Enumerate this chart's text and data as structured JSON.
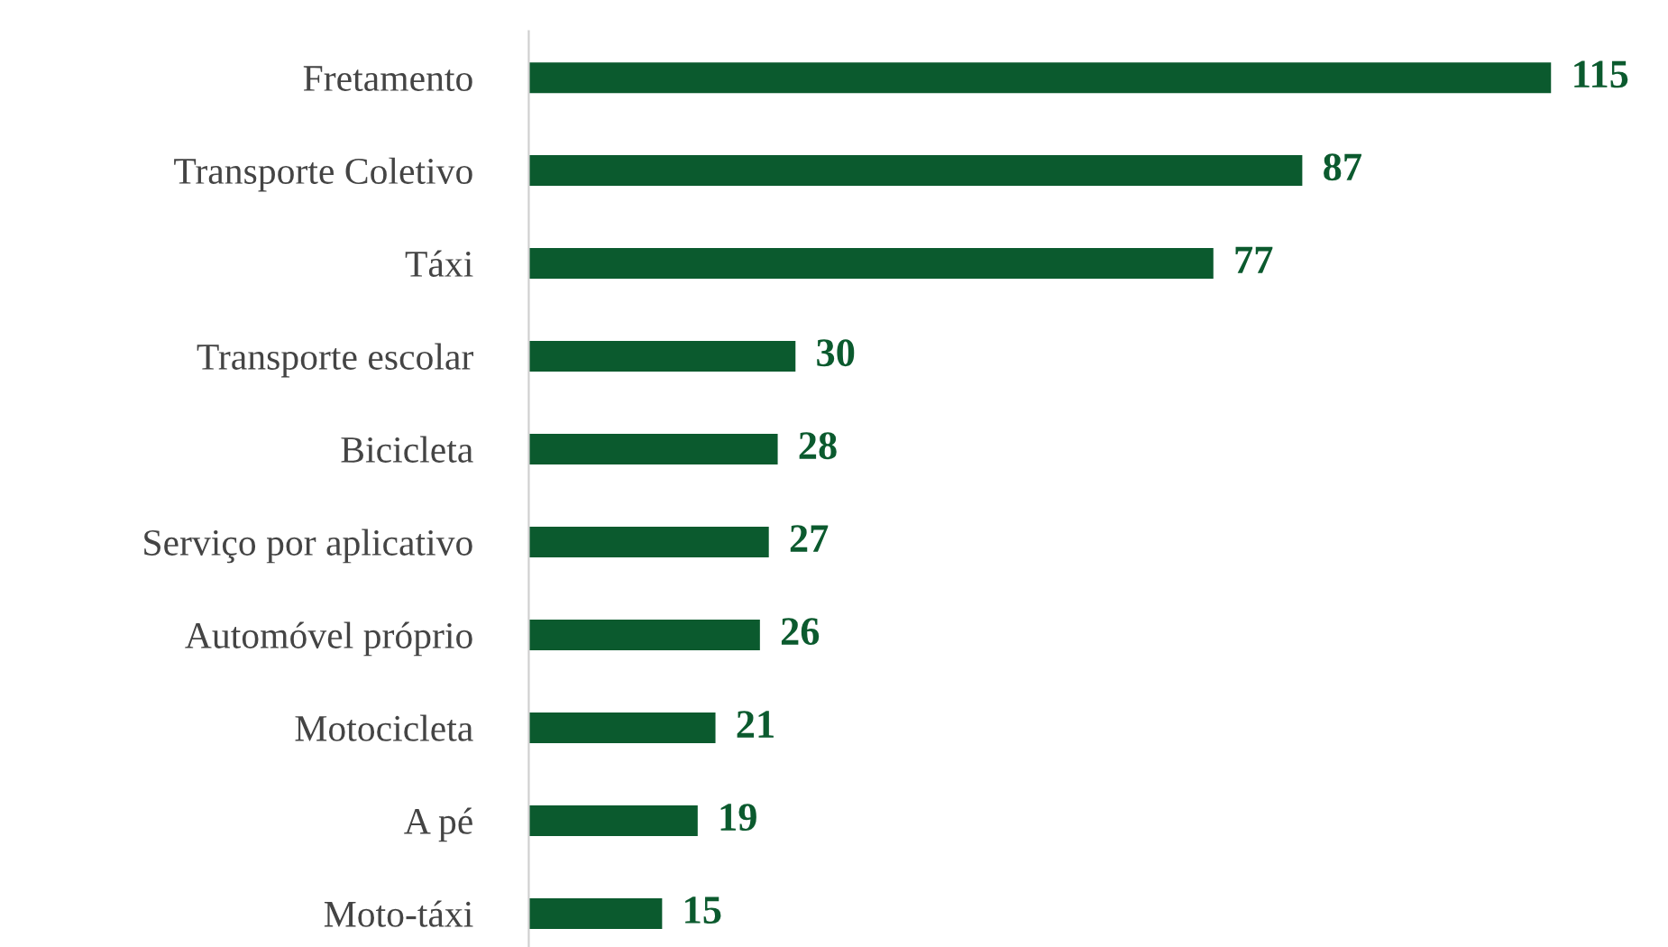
{
  "chart_data": {
    "type": "bar",
    "orientation": "horizontal",
    "categories": [
      "Fretamento",
      "Transporte Coletivo",
      "Táxi",
      "Transporte escolar",
      "Bicicleta",
      "Serviço por aplicativo",
      "Automóvel próprio",
      "Motocicleta",
      "A pé",
      "Moto-táxi"
    ],
    "values": [
      115,
      87,
      77,
      30,
      28,
      27,
      26,
      21,
      19,
      15
    ],
    "color": "#0b5a2e",
    "xlim": [
      0,
      115
    ],
    "tick_labels": "y",
    "data_labels": true,
    "grid": false,
    "legend": false
  }
}
